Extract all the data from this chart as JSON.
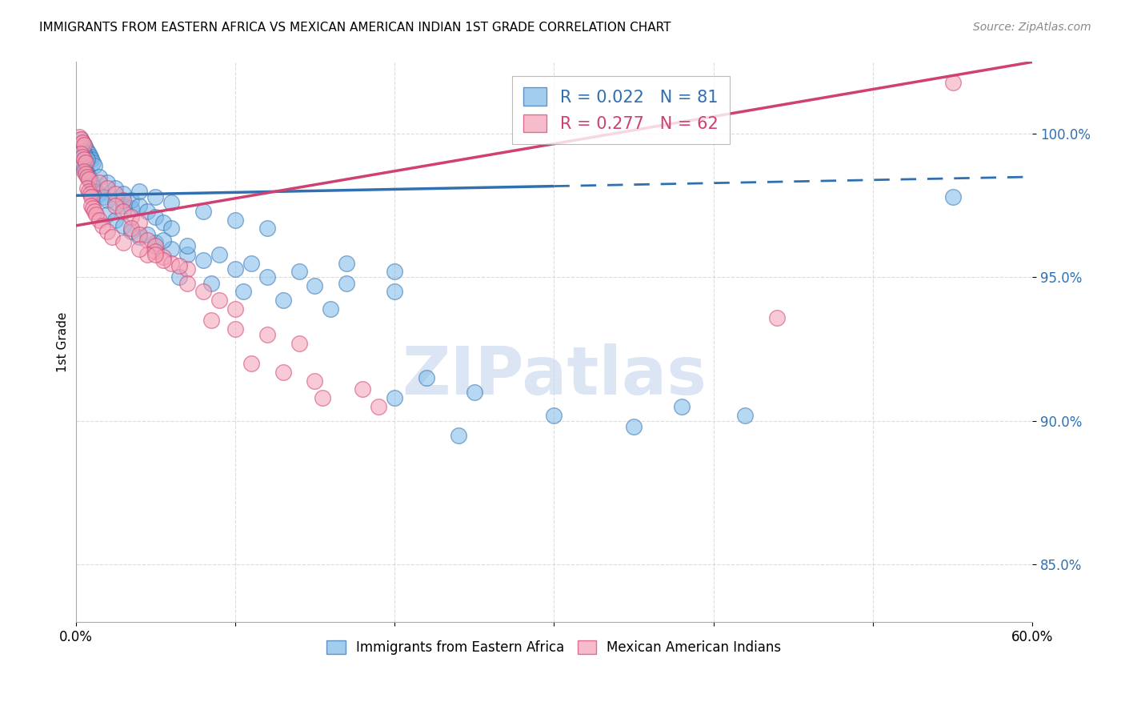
{
  "title": "IMMIGRANTS FROM EASTERN AFRICA VS MEXICAN AMERICAN INDIAN 1ST GRADE CORRELATION CHART",
  "source": "Source: ZipAtlas.com",
  "ylabel": "1st Grade",
  "yticks": [
    85.0,
    90.0,
    95.0,
    100.0
  ],
  "ytick_labels": [
    "85.0%",
    "90.0%",
    "95.0%",
    "100.0%"
  ],
  "xmin": 0.0,
  "xmax": 60.0,
  "ymin": 83.0,
  "ymax": 102.5,
  "legend_blue_r": "0.022",
  "legend_blue_n": "81",
  "legend_pink_r": "0.277",
  "legend_pink_n": "62",
  "blue_color": "#7DB8E8",
  "pink_color": "#F4A0B5",
  "blue_line_color": "#3070B0",
  "pink_line_color": "#D04070",
  "blue_scatter": [
    [
      0.3,
      99.8
    ],
    [
      0.4,
      99.7
    ],
    [
      0.5,
      99.6
    ],
    [
      0.6,
      99.5
    ],
    [
      0.7,
      99.4
    ],
    [
      0.8,
      99.3
    ],
    [
      0.9,
      99.2
    ],
    [
      1.0,
      99.1
    ],
    [
      1.1,
      99.0
    ],
    [
      1.2,
      98.9
    ],
    [
      0.3,
      99.5
    ],
    [
      0.4,
      99.4
    ],
    [
      0.5,
      99.3
    ],
    [
      0.6,
      99.2
    ],
    [
      0.7,
      99.1
    ],
    [
      0.5,
      98.8
    ],
    [
      0.6,
      98.7
    ],
    [
      0.7,
      98.6
    ],
    [
      0.8,
      98.5
    ],
    [
      0.9,
      98.4
    ],
    [
      1.0,
      98.3
    ],
    [
      1.1,
      98.2
    ],
    [
      1.2,
      98.1
    ],
    [
      1.3,
      98.0
    ],
    [
      1.5,
      97.9
    ],
    [
      1.8,
      97.8
    ],
    [
      2.0,
      97.7
    ],
    [
      2.5,
      97.6
    ],
    [
      3.0,
      97.5
    ],
    [
      3.5,
      97.4
    ],
    [
      1.5,
      98.5
    ],
    [
      2.0,
      98.3
    ],
    [
      2.5,
      98.1
    ],
    [
      3.0,
      97.9
    ],
    [
      3.5,
      97.7
    ],
    [
      4.0,
      97.5
    ],
    [
      4.5,
      97.3
    ],
    [
      5.0,
      97.1
    ],
    [
      5.5,
      96.9
    ],
    [
      6.0,
      96.7
    ],
    [
      2.0,
      97.2
    ],
    [
      2.5,
      97.0
    ],
    [
      3.0,
      96.8
    ],
    [
      3.5,
      96.6
    ],
    [
      4.0,
      96.4
    ],
    [
      5.0,
      96.2
    ],
    [
      6.0,
      96.0
    ],
    [
      7.0,
      95.8
    ],
    [
      8.0,
      95.6
    ],
    [
      10.0,
      95.3
    ],
    [
      12.0,
      95.0
    ],
    [
      15.0,
      94.7
    ],
    [
      17.0,
      95.5
    ],
    [
      20.0,
      95.2
    ],
    [
      17.0,
      94.8
    ],
    [
      20.0,
      94.5
    ],
    [
      22.0,
      91.5
    ],
    [
      25.0,
      91.0
    ],
    [
      30.0,
      90.2
    ],
    [
      35.0,
      89.8
    ],
    [
      38.0,
      90.5
    ],
    [
      42.0,
      90.2
    ],
    [
      55.0,
      97.8
    ],
    [
      4.0,
      98.0
    ],
    [
      5.0,
      97.8
    ],
    [
      6.0,
      97.6
    ],
    [
      8.0,
      97.3
    ],
    [
      10.0,
      97.0
    ],
    [
      12.0,
      96.7
    ],
    [
      4.5,
      96.5
    ],
    [
      5.5,
      96.3
    ],
    [
      7.0,
      96.1
    ],
    [
      9.0,
      95.8
    ],
    [
      11.0,
      95.5
    ],
    [
      14.0,
      95.2
    ],
    [
      6.5,
      95.0
    ],
    [
      8.5,
      94.8
    ],
    [
      10.5,
      94.5
    ],
    [
      13.0,
      94.2
    ],
    [
      16.0,
      93.9
    ],
    [
      20.0,
      90.8
    ],
    [
      24.0,
      89.5
    ]
  ],
  "pink_scatter": [
    [
      0.2,
      99.9
    ],
    [
      0.3,
      99.8
    ],
    [
      0.4,
      99.7
    ],
    [
      0.5,
      99.6
    ],
    [
      0.3,
      99.3
    ],
    [
      0.4,
      99.2
    ],
    [
      0.5,
      99.1
    ],
    [
      0.6,
      99.0
    ],
    [
      0.5,
      98.7
    ],
    [
      0.6,
      98.6
    ],
    [
      0.7,
      98.5
    ],
    [
      0.8,
      98.4
    ],
    [
      0.7,
      98.1
    ],
    [
      0.8,
      98.0
    ],
    [
      0.9,
      97.9
    ],
    [
      1.0,
      97.8
    ],
    [
      1.0,
      97.5
    ],
    [
      1.1,
      97.4
    ],
    [
      1.2,
      97.3
    ],
    [
      1.3,
      97.2
    ],
    [
      1.5,
      97.0
    ],
    [
      1.7,
      96.8
    ],
    [
      2.0,
      96.6
    ],
    [
      2.3,
      96.4
    ],
    [
      1.5,
      98.3
    ],
    [
      2.0,
      98.1
    ],
    [
      2.5,
      97.9
    ],
    [
      3.0,
      97.7
    ],
    [
      2.5,
      97.5
    ],
    [
      3.0,
      97.3
    ],
    [
      3.5,
      97.1
    ],
    [
      4.0,
      96.9
    ],
    [
      3.5,
      96.7
    ],
    [
      4.0,
      96.5
    ],
    [
      4.5,
      96.3
    ],
    [
      5.0,
      96.1
    ],
    [
      5.0,
      95.9
    ],
    [
      5.5,
      95.7
    ],
    [
      6.0,
      95.5
    ],
    [
      7.0,
      95.3
    ],
    [
      4.5,
      95.8
    ],
    [
      5.5,
      95.6
    ],
    [
      6.5,
      95.4
    ],
    [
      3.0,
      96.2
    ],
    [
      4.0,
      96.0
    ],
    [
      5.0,
      95.8
    ],
    [
      7.0,
      94.8
    ],
    [
      8.0,
      94.5
    ],
    [
      9.0,
      94.2
    ],
    [
      10.0,
      93.9
    ],
    [
      8.5,
      93.5
    ],
    [
      10.0,
      93.2
    ],
    [
      12.0,
      93.0
    ],
    [
      14.0,
      92.7
    ],
    [
      11.0,
      92.0
    ],
    [
      13.0,
      91.7
    ],
    [
      15.0,
      91.4
    ],
    [
      18.0,
      91.1
    ],
    [
      15.5,
      90.8
    ],
    [
      19.0,
      90.5
    ],
    [
      44.0,
      93.6
    ],
    [
      55.0,
      101.8
    ]
  ],
  "blue_trend": [
    0.0,
    60.0,
    97.85,
    98.5
  ],
  "blue_solid_end": 30.0,
  "pink_trend": [
    0.0,
    60.0,
    96.8,
    102.5
  ],
  "watermark_text": "ZIPatlas",
  "background_color": "#FFFFFF",
  "grid_color": "#CCCCCC",
  "grid_linestyle": "--"
}
